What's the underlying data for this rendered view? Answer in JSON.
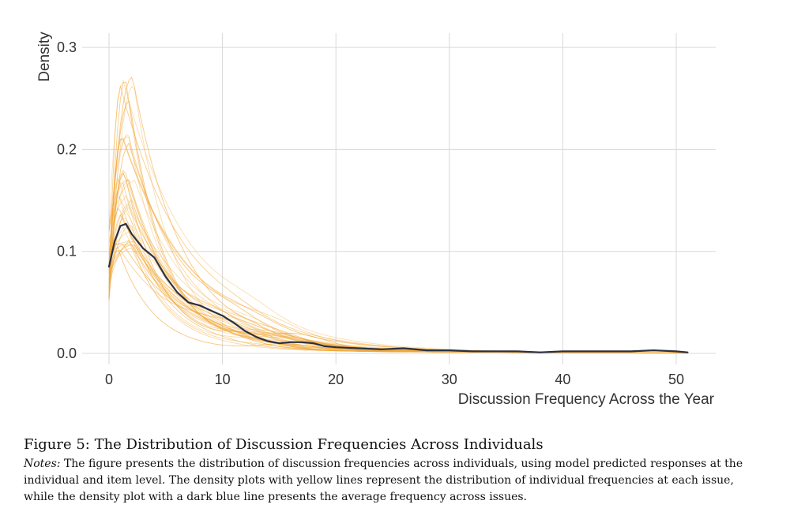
{
  "chart_data": {
    "type": "line",
    "title": "",
    "xlabel": "Discussion Frequency Across the Year",
    "ylabel": "Density",
    "xlim": [
      -2,
      53
    ],
    "ylim": [
      0,
      0.3
    ],
    "x_ticks": [
      0,
      10,
      20,
      30,
      40,
      50
    ],
    "y_ticks": [
      0.0,
      0.1,
      0.2,
      0.3
    ],
    "y_tick_labels": [
      "0.0",
      "0.1",
      "0.2",
      "0.3"
    ],
    "grid": true,
    "series_note": "Many thin yellow lines show density per issue; one dark blue line shows the average across issues.",
    "average_series": {
      "color": "#2b3140",
      "x": [
        0,
        0.5,
        1,
        1.5,
        2,
        3,
        4,
        5,
        6,
        7,
        8,
        9,
        10,
        11,
        12,
        13,
        14,
        15,
        16,
        17,
        18,
        19,
        20,
        22,
        24,
        26,
        28,
        30,
        32,
        34,
        36,
        38,
        40,
        42,
        44,
        46,
        48,
        50,
        51
      ],
      "y": [
        0.085,
        0.11,
        0.125,
        0.127,
        0.117,
        0.103,
        0.094,
        0.075,
        0.06,
        0.05,
        0.047,
        0.042,
        0.037,
        0.03,
        0.022,
        0.016,
        0.012,
        0.01,
        0.011,
        0.011,
        0.01,
        0.007,
        0.006,
        0.005,
        0.004,
        0.005,
        0.003,
        0.003,
        0.002,
        0.002,
        0.002,
        0.001,
        0.002,
        0.002,
        0.002,
        0.002,
        0.003,
        0.002,
        0.001
      ]
    },
    "issue_series": {
      "color": "#f2a93b",
      "count": 40,
      "start_range": [
        0.05,
        0.13
      ],
      "peak_range": [
        0.1,
        0.28
      ],
      "peak_x_range": [
        0.6,
        2.2
      ]
    }
  },
  "caption": {
    "figure_title": "Figure 5: The Distribution of Discussion Frequencies Across Individuals",
    "notes_label": "Notes:",
    "notes_text": " The figure presents the distribution of discussion frequencies across individuals, using model predicted responses at the individual and item level. The density plots with yellow lines represent the distribution of individual frequencies at each issue, while the density plot with a dark blue line presents the average frequency across issues."
  }
}
